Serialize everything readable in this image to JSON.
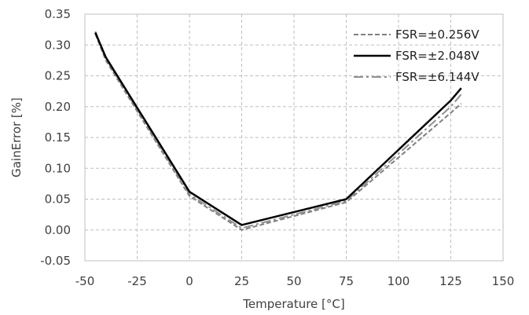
{
  "chart_data": {
    "type": "line",
    "xlabel": "Temperature [°C]",
    "ylabel": "GainError [%]",
    "xlim": [
      -50,
      150
    ],
    "ylim": [
      -0.05,
      0.35
    ],
    "xticks": [
      -50,
      -25,
      0,
      25,
      50,
      75,
      100,
      125,
      150
    ],
    "yticks": [
      -0.05,
      0.0,
      0.05,
      0.1,
      0.15,
      0.2,
      0.25,
      0.3,
      0.35
    ],
    "grid": true,
    "legend_position": "top-right",
    "series": [
      {
        "name": "FSR=±0.256V",
        "style": "dashed",
        "color": "#808080",
        "x": [
          -45,
          -40,
          0,
          25,
          75,
          125,
          130
        ],
        "y": [
          0.318,
          0.275,
          0.055,
          0.0,
          0.045,
          0.19,
          0.205
        ]
      },
      {
        "name": "FSR=±2.048V",
        "style": "solid",
        "color": "#000000",
        "x": [
          -45,
          -40,
          0,
          25,
          75,
          125,
          130
        ],
        "y": [
          0.32,
          0.28,
          0.062,
          0.008,
          0.05,
          0.21,
          0.23
        ]
      },
      {
        "name": "FSR=±6.144V",
        "style": "dashdot",
        "color": "#909090",
        "x": [
          -45,
          -40,
          0,
          25,
          75,
          125,
          130
        ],
        "y": [
          0.322,
          0.278,
          0.058,
          0.003,
          0.047,
          0.2,
          0.22
        ]
      }
    ]
  }
}
